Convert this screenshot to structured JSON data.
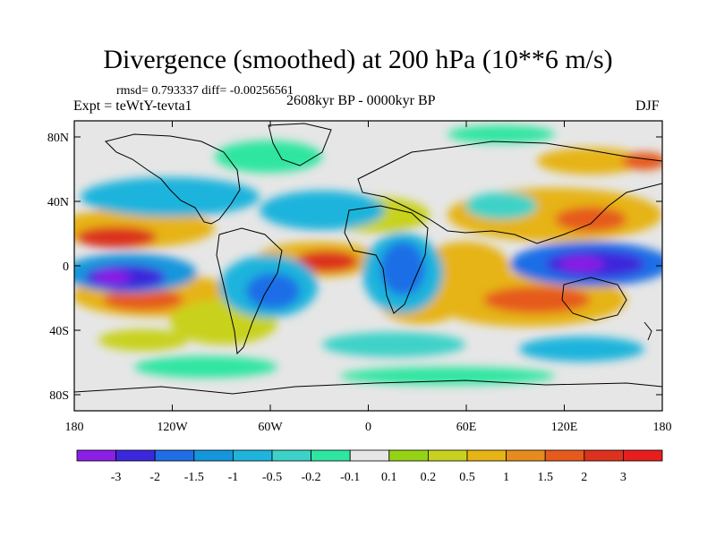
{
  "title": "Divergence (smoothed) at 200 hPa (10**6 m/s)",
  "stats": "rmsd= 0.793337 diff= -0.00256561",
  "experiment": "Expt = teWtY-tevta1",
  "period": "2608kyr BP - 0000kyr BP",
  "season": "DJF",
  "axes": {
    "lat_ticks": [
      "80N",
      "40N",
      "0",
      "40S",
      "80S"
    ],
    "lat_values": [
      80,
      40,
      0,
      -40,
      -80
    ],
    "lon_ticks": [
      "180",
      "120W",
      "60W",
      "0",
      "60E",
      "120E",
      "180"
    ],
    "lon_values": [
      -180,
      -120,
      -60,
      0,
      60,
      120,
      180
    ]
  },
  "colorbar": {
    "labels": [
      "-3",
      "-2",
      "-1.5",
      "-1",
      "-0.5",
      "-0.2",
      "-0.1",
      "0.1",
      "0.2",
      "0.5",
      "1",
      "1.5",
      "2",
      "3"
    ],
    "colors": [
      "#8c1ee6",
      "#3c28dc",
      "#1e6ee6",
      "#1496dc",
      "#1eb4dc",
      "#3cd2c8",
      "#2ee6a0",
      "#e6e6e6",
      "#96d214",
      "#c8d21e",
      "#e6b414",
      "#e68c1e",
      "#e65a1e",
      "#dc321e",
      "#e61e1e"
    ]
  },
  "colors": {
    "neutral": "#e6e6e6",
    "coastline": "#000000"
  }
}
